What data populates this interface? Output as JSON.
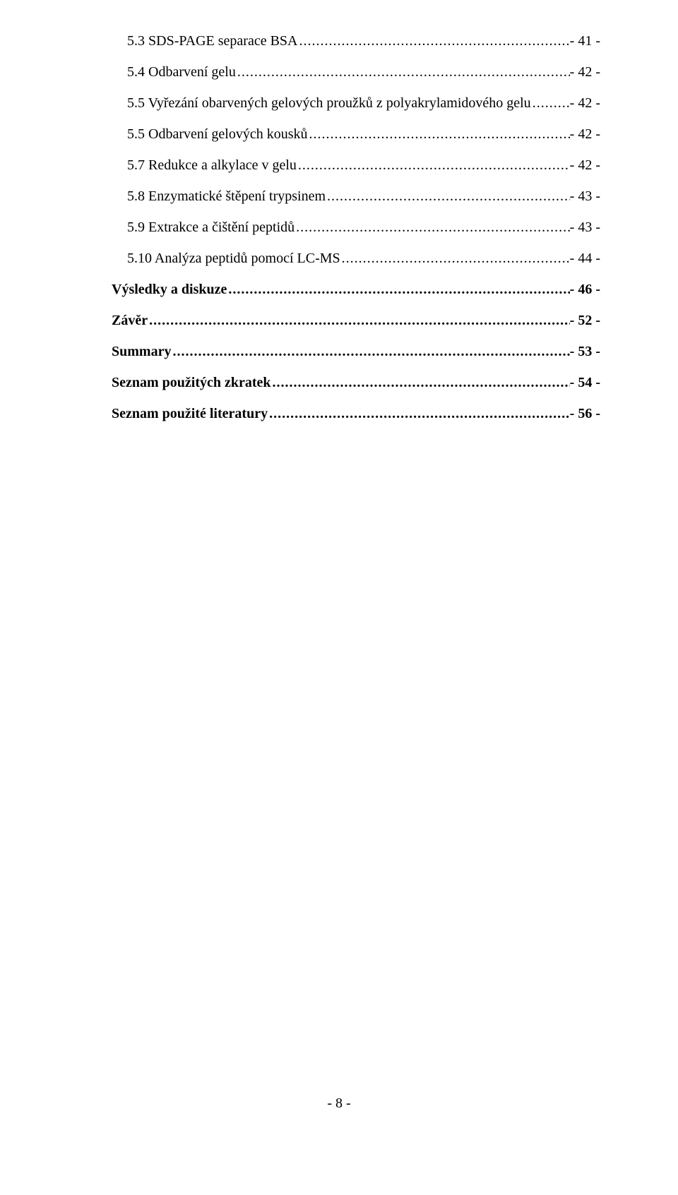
{
  "toc": {
    "entries": [
      {
        "label": "5.3  SDS-PAGE separace BSA",
        "page": "- 41 -",
        "indent": true,
        "bold": false
      },
      {
        "label": "5.4  Odbarvení gelu",
        "page": "- 42 -",
        "indent": true,
        "bold": false
      },
      {
        "label": "5.5  Vyřezání obarvených gelových proužků z polyakrylamidového gelu",
        "page": "- 42 -",
        "indent": true,
        "bold": false
      },
      {
        "label": "5.5  Odbarvení gelových kousků",
        "page": "- 42 -",
        "indent": true,
        "bold": false
      },
      {
        "label": "5.7  Redukce a alkylace v gelu",
        "page": "- 42 -",
        "indent": true,
        "bold": false
      },
      {
        "label": "5.8  Enzymatické štěpení trypsinem",
        "page": "- 43 -",
        "indent": true,
        "bold": false
      },
      {
        "label": "5.9  Extrakce a čištění peptidů",
        "page": "- 43 -",
        "indent": true,
        "bold": false
      },
      {
        "label": "5.10  Analýza peptidů pomocí LC-MS",
        "page": "- 44 -",
        "indent": true,
        "bold": false
      },
      {
        "label": "Výsledky a diskuze",
        "page": "- 46 -",
        "indent": false,
        "bold": true
      },
      {
        "label": "Závěr",
        "page": "- 52 -",
        "indent": false,
        "bold": true
      },
      {
        "label": "Summary",
        "page": "- 53 -",
        "indent": false,
        "bold": true
      },
      {
        "label": "Seznam použitých zkratek",
        "page": "- 54 -",
        "indent": false,
        "bold": true
      },
      {
        "label": "Seznam použité literatury",
        "page": "- 56 -",
        "indent": false,
        "bold": true
      }
    ]
  },
  "footer": {
    "page_number": "- 8 -"
  },
  "style": {
    "text_color": "#000000",
    "background_color": "#ffffff",
    "font_family": "Times New Roman",
    "base_font_size_pt": 15
  }
}
